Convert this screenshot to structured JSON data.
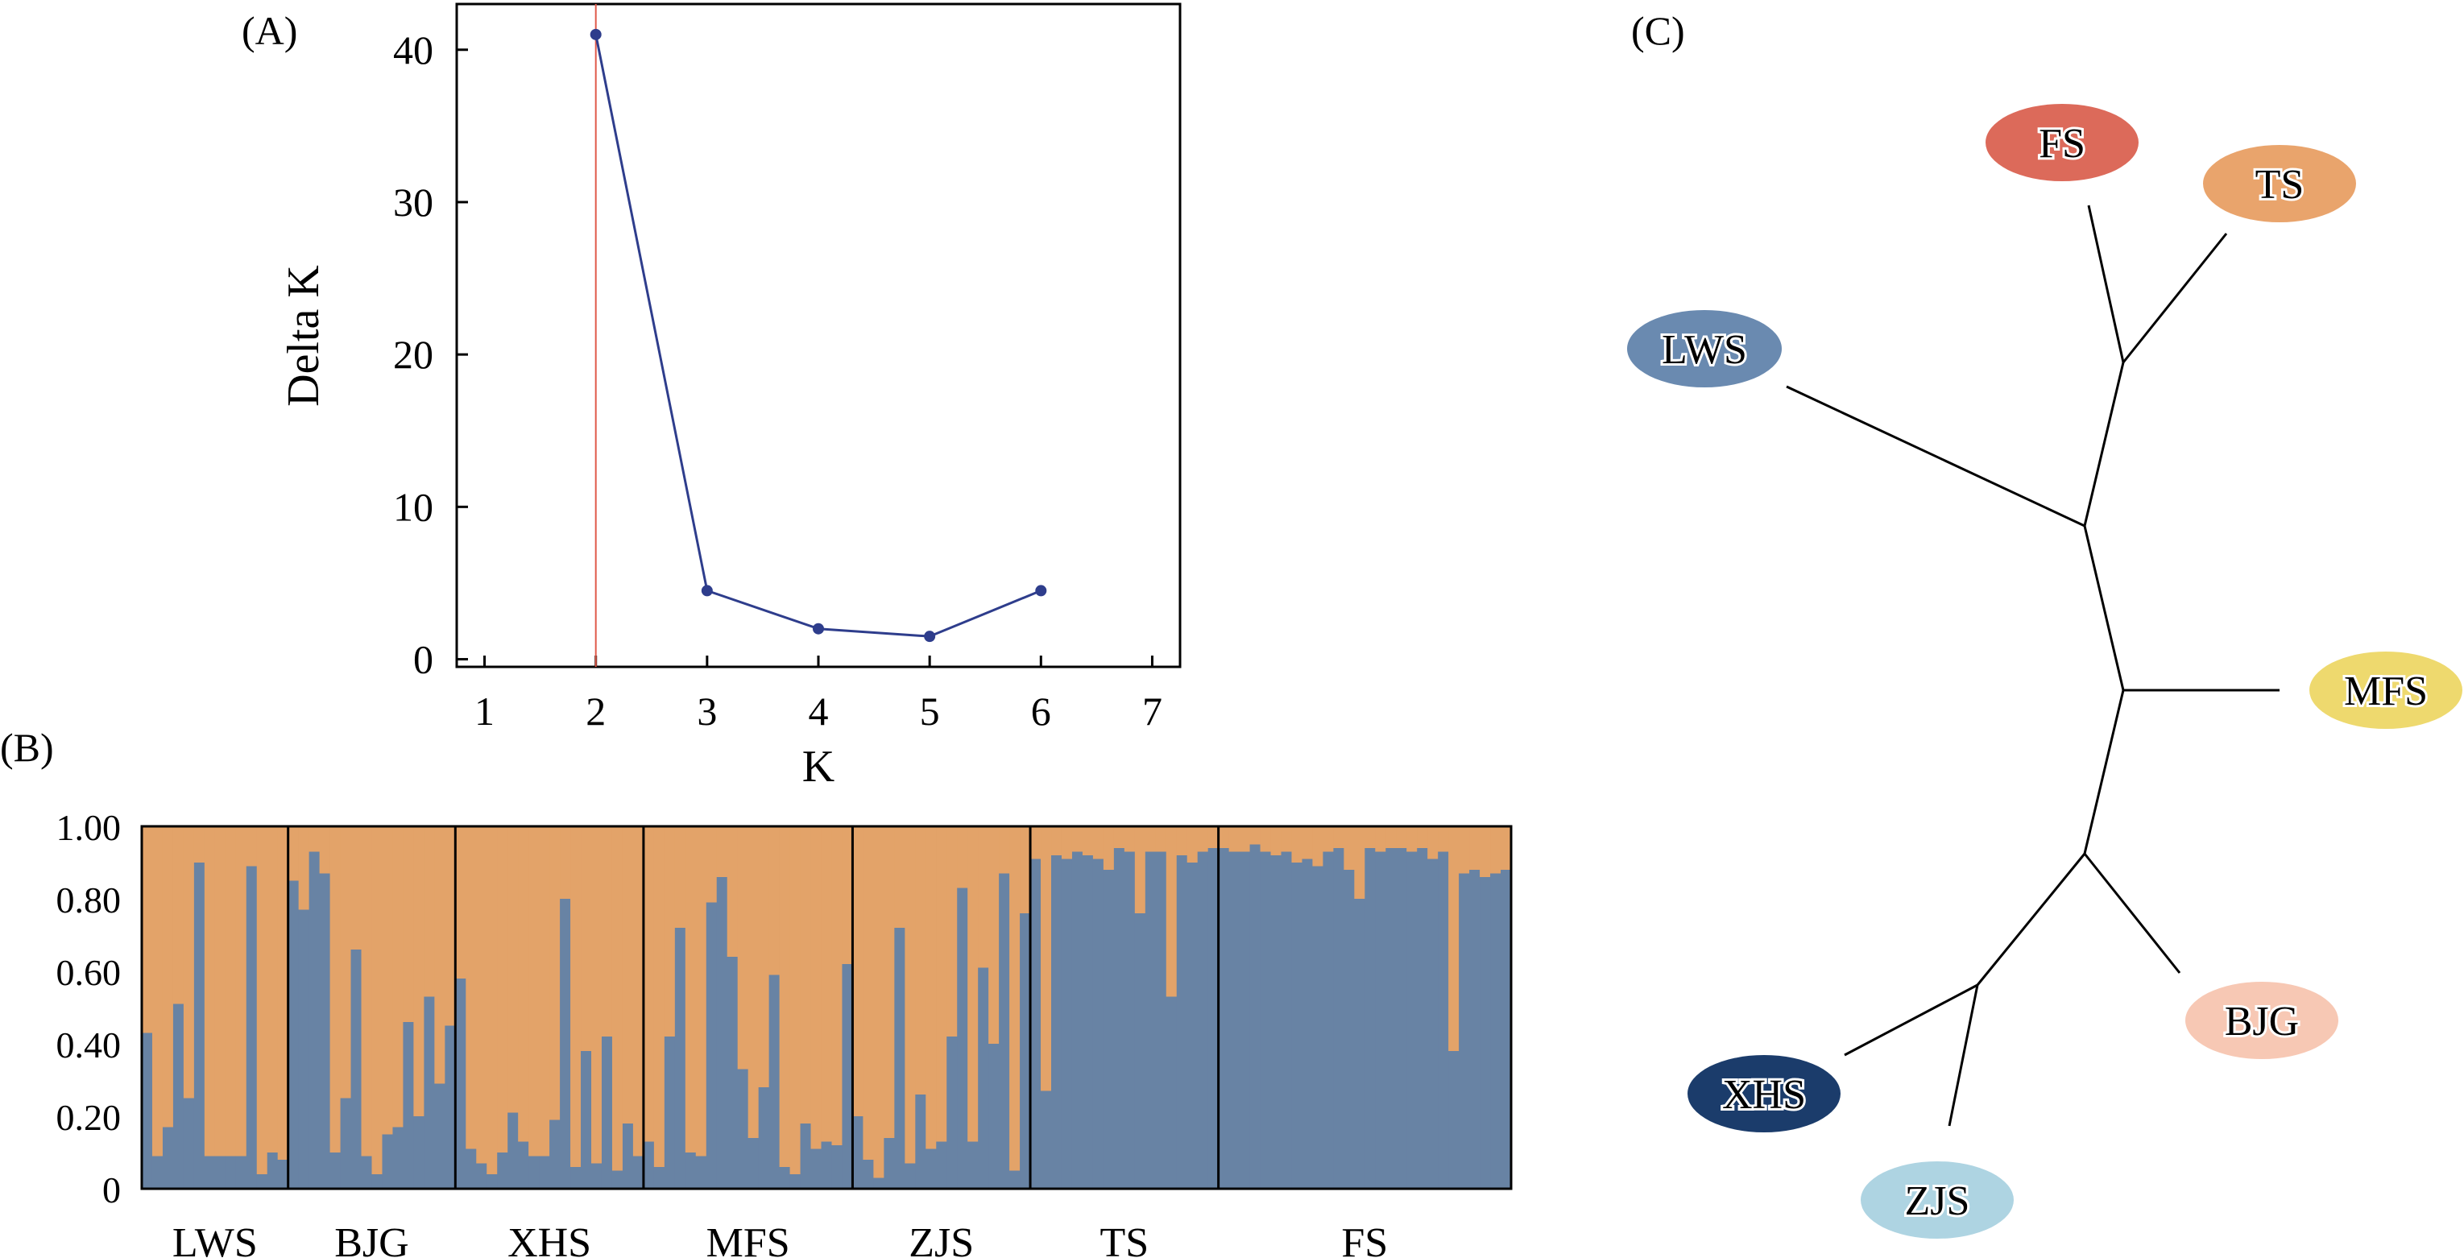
{
  "chart_data": [
    {
      "panel": "(A)",
      "type": "line",
      "xlabel": "K",
      "ylabel": "Delta K",
      "x_ticks": [
        "1",
        "2",
        "3",
        "4",
        "5",
        "6",
        "7"
      ],
      "y_ticks": [
        "0",
        "10",
        "20",
        "30",
        "40"
      ],
      "xlim": [
        0.75,
        7.25
      ],
      "ylim": [
        -0.5,
        43
      ],
      "series": [
        {
          "x": [
            2,
            3,
            4,
            5,
            6
          ],
          "y": [
            41.0,
            4.5,
            2.0,
            1.5,
            4.5
          ]
        }
      ],
      "reference_line_x": 2,
      "colors": {
        "line": "#2e3d8c",
        "marker": "#2e3d8c",
        "reference": "#e05a4a"
      }
    },
    {
      "panel": "(B)",
      "type": "bar",
      "stacked": true,
      "ylim": [
        0,
        1
      ],
      "y_ticks": [
        "0",
        "0.20",
        "0.40",
        "0.60",
        "0.80",
        "1.00"
      ],
      "groups": [
        {
          "name": "LWS",
          "values": [
            0.43,
            0.09,
            0.17,
            0.51,
            0.25,
            0.9,
            0.09,
            0.09,
            0.09,
            0.09,
            0.89,
            0.04,
            0.1,
            0.08
          ]
        },
        {
          "name": "BJG",
          "values": [
            0.85,
            0.77,
            0.93,
            0.87,
            0.1,
            0.25,
            0.66,
            0.09,
            0.04,
            0.15,
            0.17,
            0.46,
            0.2,
            0.53,
            0.29,
            0.45
          ]
        },
        {
          "name": "XHS",
          "values": [
            0.58,
            0.11,
            0.07,
            0.04,
            0.1,
            0.21,
            0.13,
            0.09,
            0.09,
            0.19,
            0.8,
            0.06,
            0.38,
            0.07,
            0.42,
            0.05,
            0.18,
            0.09
          ]
        },
        {
          "name": "MFS",
          "values": [
            0.13,
            0.06,
            0.42,
            0.72,
            0.1,
            0.09,
            0.79,
            0.86,
            0.64,
            0.33,
            0.14,
            0.28,
            0.59,
            0.06,
            0.04,
            0.18,
            0.11,
            0.13,
            0.12,
            0.62
          ]
        },
        {
          "name": "ZJS",
          "values": [
            0.2,
            0.08,
            0.03,
            0.14,
            0.72,
            0.07,
            0.26,
            0.11,
            0.13,
            0.42,
            0.83,
            0.13,
            0.61,
            0.4,
            0.87,
            0.05,
            0.76
          ]
        },
        {
          "name": "TS",
          "values": [
            0.91,
            0.27,
            0.92,
            0.91,
            0.93,
            0.92,
            0.91,
            0.88,
            0.94,
            0.93,
            0.76,
            0.93,
            0.93,
            0.53,
            0.92,
            0.9,
            0.93,
            0.94
          ]
        },
        {
          "name": "FS",
          "values": [
            0.94,
            0.93,
            0.93,
            0.95,
            0.93,
            0.92,
            0.93,
            0.9,
            0.91,
            0.89,
            0.93,
            0.94,
            0.88,
            0.8,
            0.94,
            0.93,
            0.94,
            0.94,
            0.93,
            0.94,
            0.91,
            0.93,
            0.38,
            0.87,
            0.88,
            0.86,
            0.87,
            0.88
          ]
        }
      ],
      "colors": {
        "lower": "#6883a4",
        "upper": "#e3a369",
        "divider": "#000000"
      }
    },
    {
      "panel": "(C)",
      "type": "tree",
      "leaves": [
        {
          "name": "FS",
          "color": "#dc6a5a"
        },
        {
          "name": "TS",
          "color": "#e9a46c"
        },
        {
          "name": "LWS",
          "color": "#6a8ab0"
        },
        {
          "name": "MFS",
          "color": "#eed96e"
        },
        {
          "name": "BJG",
          "color": "#f7c8b4"
        },
        {
          "name": "XHS",
          "color": "#1b3c6b"
        },
        {
          "name": "ZJS",
          "color": "#aed4e2"
        }
      ]
    }
  ]
}
